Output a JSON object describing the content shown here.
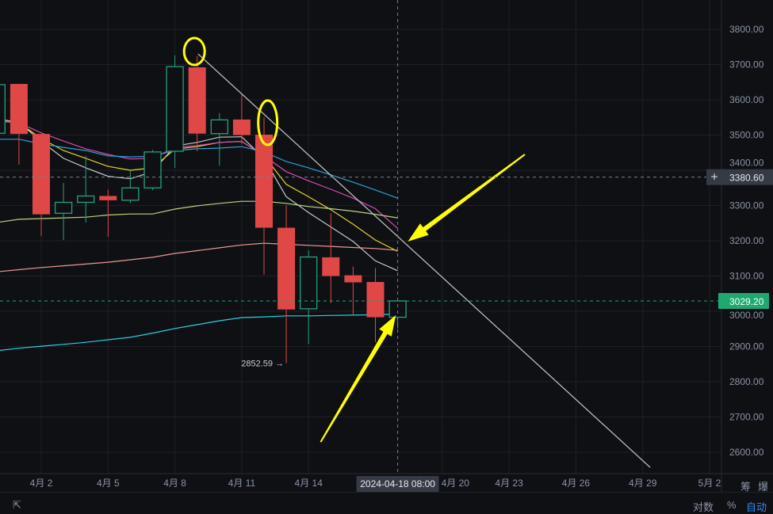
{
  "chart_data": {
    "type": "candlestick",
    "dates": [
      "2024-03-31",
      "2024-04-01",
      "2024-04-02",
      "2024-04-03",
      "2024-04-04",
      "2024-04-05",
      "2024-04-06",
      "2024-04-07",
      "2024-04-08",
      "2024-04-09",
      "2024-04-10",
      "2024-04-11",
      "2024-04-12",
      "2024-04-13",
      "2024-04-14",
      "2024-04-15",
      "2024-04-16",
      "2024-04-17",
      "2024-04-18"
    ],
    "candles": [
      {
        "o": 3505,
        "h": 3645,
        "l": 3500,
        "c": 3643
      },
      {
        "o": 3645,
        "h": 3645,
        "l": 3416,
        "c": 3503
      },
      {
        "o": 3503,
        "h": 3503,
        "l": 3213,
        "c": 3275
      },
      {
        "o": 3278,
        "h": 3364,
        "l": 3202,
        "c": 3309
      },
      {
        "o": 3309,
        "h": 3441,
        "l": 3252,
        "c": 3327
      },
      {
        "o": 3327,
        "h": 3345,
        "l": 3211,
        "c": 3315
      },
      {
        "o": 3315,
        "h": 3398,
        "l": 3307,
        "c": 3350
      },
      {
        "o": 3350,
        "h": 3458,
        "l": 3344,
        "c": 3452
      },
      {
        "o": 3454,
        "h": 3726,
        "l": 3407,
        "c": 3694
      },
      {
        "o": 3692,
        "h": 3724,
        "l": 3454,
        "c": 3504
      },
      {
        "o": 3504,
        "h": 3562,
        "l": 3413,
        "c": 3543
      },
      {
        "o": 3544,
        "h": 3618,
        "l": 3475,
        "c": 3500
      },
      {
        "o": 3501,
        "h": 3551,
        "l": 3104,
        "c": 3237
      },
      {
        "o": 3237,
        "h": 3300,
        "l": 2852.59,
        "c": 3005
      },
      {
        "o": 3007,
        "h": 3173,
        "l": 2907,
        "c": 3154
      },
      {
        "o": 3153,
        "h": 3278,
        "l": 3023,
        "c": 3100
      },
      {
        "o": 3102,
        "h": 3127,
        "l": 2989,
        "c": 3082
      },
      {
        "o": 3083,
        "h": 3123,
        "l": 2913,
        "c": 2983
      },
      {
        "o": 2983,
        "h": 3029.2,
        "l": 2951,
        "c": 3029.2
      }
    ],
    "moving_averages": [
      {
        "color": "#c8c8c8",
        "values": [
          3546,
          3536,
          3482,
          3434,
          3407,
          3383,
          3376,
          3396,
          3469,
          3479,
          3494,
          3495,
          3434,
          3325,
          3280,
          3239,
          3198,
          3143,
          3115
        ]
      },
      {
        "color": "#e6d22a",
        "values": [
          3540,
          3535,
          3490,
          3456,
          3434,
          3411,
          3400,
          3407,
          3460,
          3467,
          3479,
          3482,
          3441,
          3360,
          3325,
          3288,
          3247,
          3202,
          3170
        ]
      },
      {
        "color": "#d84bb0",
        "values": [
          3542,
          3535,
          3506,
          3483,
          3461,
          3445,
          3432,
          3434,
          3465,
          3470,
          3479,
          3482,
          3441,
          3396,
          3370,
          3346,
          3321,
          3291,
          3235
        ]
      },
      {
        "color": "#2f9fd6",
        "values": [
          3488,
          3488,
          3475,
          3465,
          3456,
          3441,
          3438,
          3440,
          3456,
          3461,
          3463,
          3467,
          3452,
          3425,
          3407,
          3387,
          3366,
          3344,
          3321
        ]
      },
      {
        "color": "#b9d383",
        "values": [
          3252,
          3261,
          3263,
          3265,
          3267,
          3273,
          3276,
          3276,
          3290,
          3299,
          3306,
          3312,
          3312,
          3306,
          3297,
          3291,
          3284,
          3275,
          3265
        ]
      },
      {
        "color": "#e99a90",
        "values": [
          3112,
          3118,
          3124,
          3129,
          3134,
          3139,
          3146,
          3153,
          3164,
          3172,
          3180,
          3188,
          3193,
          3190,
          3187,
          3184,
          3181,
          3178,
          3173
        ]
      },
      {
        "color": "#27d3e0",
        "values": [
          2888,
          2895,
          2901,
          2906,
          2912,
          2919,
          2926,
          2938,
          2951,
          2962,
          2973,
          2982,
          2984,
          2987,
          2987,
          2988,
          2989,
          2990,
          2992
        ]
      }
    ],
    "y_axis": {
      "ticks": [
        3800,
        3700,
        3600,
        3500,
        3400,
        3300,
        3200,
        3100,
        3000,
        2900,
        2800,
        2700,
        2600
      ],
      "labels": [
        "3800.00",
        "3700.00",
        "3600.00",
        "3500.00",
        "3400.00",
        "3300.00",
        "3200.00",
        "3100.00",
        "3000.00",
        "2900.00",
        "2800.00",
        "2700.00",
        "2600.00"
      ],
      "range": [
        2560,
        3880
      ]
    },
    "x_axis": {
      "ticks": [
        "2024-04-02",
        "2024-04-05",
        "2024-04-08",
        "2024-04-11",
        "2024-04-14",
        "2024-04-20",
        "2024-04-23",
        "2024-04-26",
        "2024-04-29",
        "2024-05-02"
      ],
      "labels": [
        "4月 2",
        "4月 5",
        "4月 8",
        "4月 11",
        "4月 14",
        "4月 20",
        "4月 23",
        "4月 26",
        "4月 29",
        "5月 2"
      ]
    },
    "low_label": "2852.59 →",
    "crosshair": {
      "date": "2024-04-18",
      "price": 3380.6,
      "price_label": "3380.60",
      "date_label": "2024-04-18 08:00",
      "plus": "+"
    },
    "last_price": {
      "price": 3029.2,
      "label": "3029.20",
      "color": "#1fa971"
    },
    "trendline": {
      "start": [
        "2024-04-09T01:00",
        3730
      ],
      "end": [
        "2024-04-29T08:00",
        2557
      ],
      "color": "#c8c8c8"
    },
    "annotations": {
      "color": "#ffff00",
      "circles": [
        [
          "2024-04-08T21:00",
          3737
        ],
        [
          "2024-04-12T04:00",
          3535
        ]
      ],
      "arrows": [
        {
          "from": [
            "2024-04-23T17:00",
            3445
          ],
          "to": [
            "2024-04-18T11:00",
            3198
          ]
        },
        {
          "from": [
            "2024-04-14T13:00",
            2629
          ],
          "to": [
            "2024-04-17T22:00",
            2989
          ]
        }
      ]
    },
    "colors": {
      "up": "#26a17b",
      "down": "#e04848",
      "grid": "#1e2026",
      "axis_text": "#8a93a6"
    },
    "grid": true
  },
  "axis_corner": {
    "chip": "筹",
    "burst": "爆"
  },
  "bottombar": {
    "log": "对数",
    "percent": "%",
    "auto": "自动",
    "tool": "⇱"
  }
}
